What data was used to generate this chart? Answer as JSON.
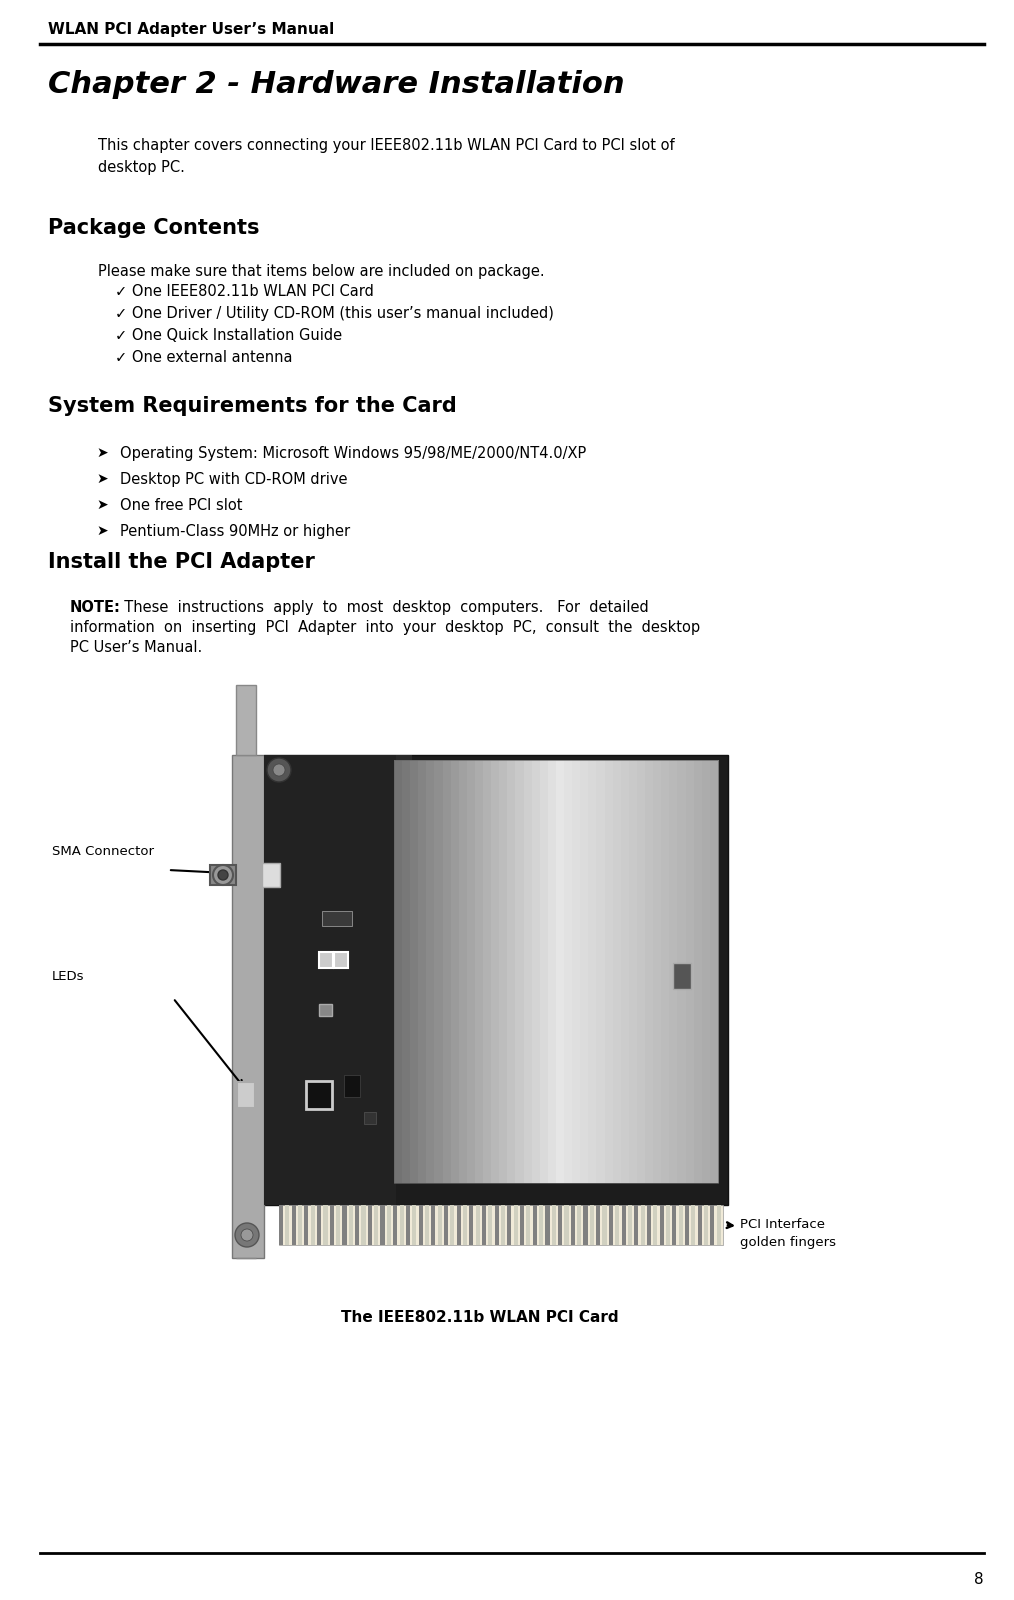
{
  "header_text": "WLAN PCI Adapter User’s Manual",
  "chapter_title": "Chapter 2 - Hardware Installation",
  "intro_text": "This chapter covers connecting your IEEE802.11b WLAN PCI Card to PCI slot of\ndesktop PC.",
  "section1_title": "Package Contents",
  "section1_intro": "Please make sure that items below are included on package.",
  "section1_items": [
    "One IEEE802.11b WLAN PCI Card",
    "One Driver / Utility CD-ROM (this user’s manual included)",
    "One Quick Installation Guide",
    "One external antenna"
  ],
  "section2_title": "System Requirements for the Card",
  "section2_items": [
    "Operating System: Microsoft Windows 95/98/ME/2000/NT4.0/XP",
    "Desktop PC with CD-ROM drive",
    "One free PCI slot",
    "Pentium-Class 90MHz or higher"
  ],
  "section3_title": "Install the PCI Adapter",
  "note_line1": "NOTE:  These  instructions  apply  to  most  desktop  computers.   For  detailed",
  "note_line2": "information  on  inserting  PCI  Adapter  into  your  desktop  PC,  consult  the  desktop",
  "note_line3": "PC User’s Manual.",
  "label_sma": "SMA Connector",
  "label_leds": "LEDs",
  "label_pci_line1": "PCI Interface",
  "label_pci_line2": "golden fingers",
  "caption": "The IEEE802.11b WLAN PCI Card",
  "page_number": "8",
  "bg_color": "#ffffff",
  "text_color": "#000000",
  "header_font_size": 11,
  "chapter_font_size": 22,
  "section_font_size": 15,
  "body_font_size": 10.5,
  "note_font_size": 10.5
}
